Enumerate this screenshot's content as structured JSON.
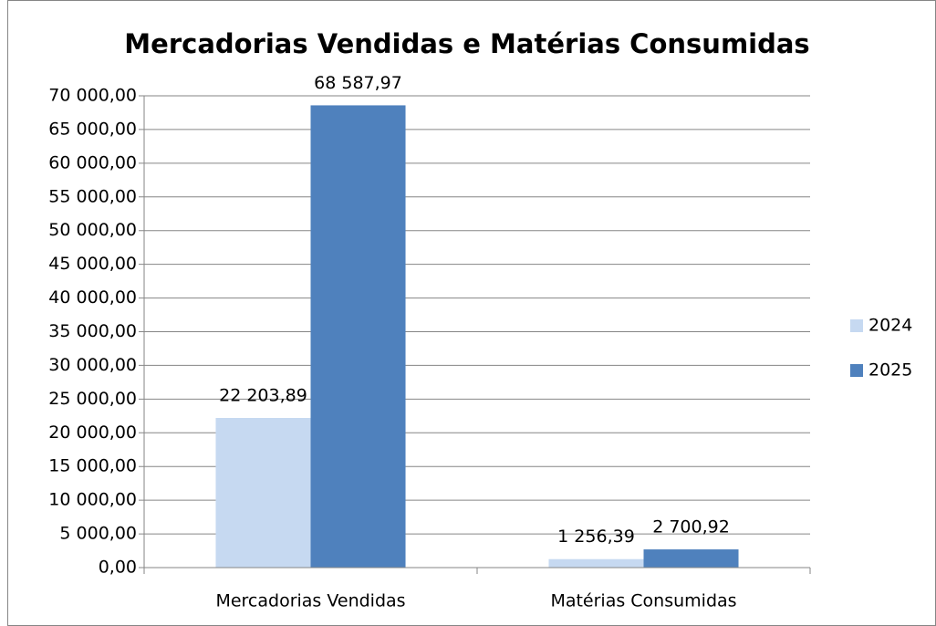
{
  "chart_data": {
    "type": "bar",
    "title": "Mercadorias Vendidas e Matérias Consumidas",
    "categories": [
      "Mercadorias Vendidas",
      "Matérias Consumidas"
    ],
    "series": [
      {
        "name": "2024",
        "color": "#c6d9f1",
        "values": [
          22203.89,
          1256.39
        ],
        "value_labels": [
          "22 203,89",
          "1 256,39"
        ]
      },
      {
        "name": "2025",
        "color": "#4f81bd",
        "values": [
          68587.97,
          2700.92
        ],
        "value_labels": [
          "68 587,97",
          "2 700,92"
        ]
      }
    ],
    "ylim": [
      0,
      70000
    ],
    "yticks": [
      {
        "value": 0,
        "label": "0,00"
      },
      {
        "value": 5000,
        "label": "5 000,00"
      },
      {
        "value": 10000,
        "label": "10 000,00"
      },
      {
        "value": 15000,
        "label": "15 000,00"
      },
      {
        "value": 20000,
        "label": "20 000,00"
      },
      {
        "value": 25000,
        "label": "25 000,00"
      },
      {
        "value": 30000,
        "label": "30 000,00"
      },
      {
        "value": 35000,
        "label": "35 000,00"
      },
      {
        "value": 40000,
        "label": "40 000,00"
      },
      {
        "value": 45000,
        "label": "45 000,00"
      },
      {
        "value": 50000,
        "label": "50 000,00"
      },
      {
        "value": 55000,
        "label": "55 000,00"
      },
      {
        "value": 60000,
        "label": "60 000,00"
      },
      {
        "value": 65000,
        "label": "65 000,00"
      },
      {
        "value": 70000,
        "label": "70 000,00"
      }
    ],
    "grid": true,
    "legend": "right"
  }
}
